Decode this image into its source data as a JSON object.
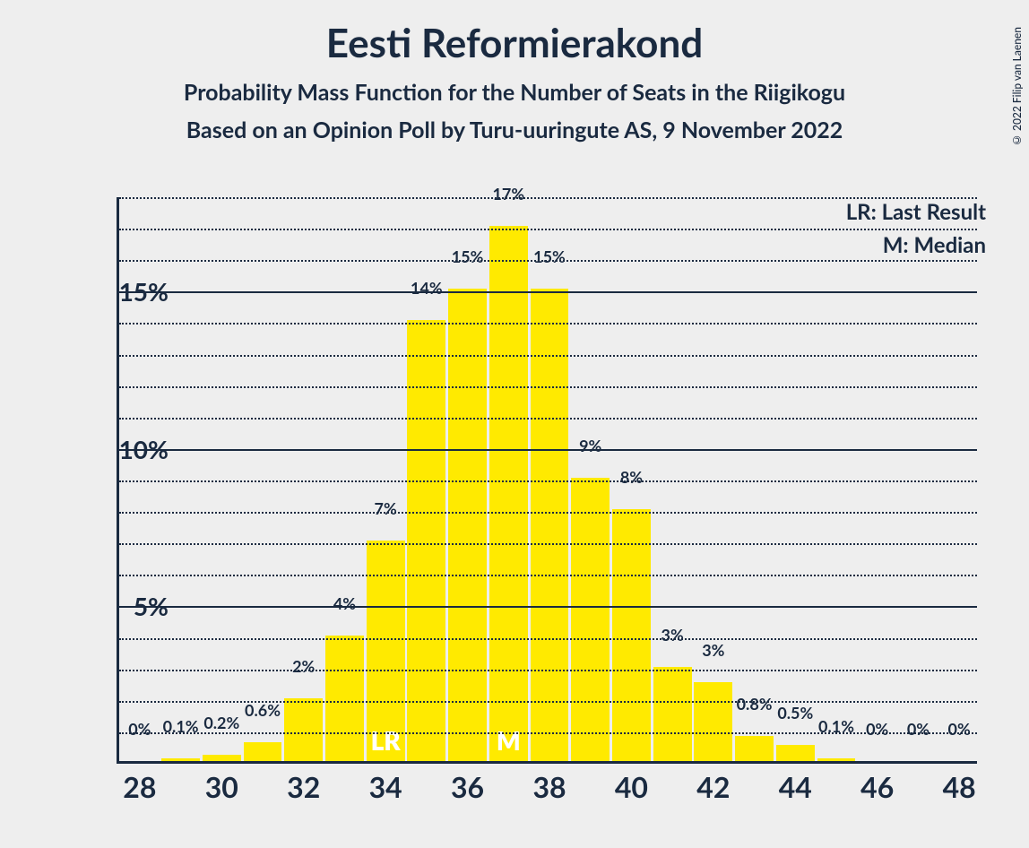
{
  "copyright": "© 2022 Filip van Laenen",
  "title": "Eesti Reformierakond",
  "subtitle1": "Probability Mass Function for the Number of Seats in the Riigikogu",
  "subtitle2": "Based on an Opinion Poll by Turu-uuringute AS, 9 November 2022",
  "legend": {
    "lr": "LR: Last Result",
    "m": "M: Median"
  },
  "chart": {
    "type": "bar",
    "background_color": "#eeeeee",
    "bar_color": "#ffea00",
    "axis_color": "#1a2a40",
    "grid_major_color": "#1a2a40",
    "grid_minor_color": "#1a2a40",
    "text_color": "#1a2a40",
    "title_fontsize": 44,
    "subtitle_fontsize": 25,
    "ytick_fontsize": 28,
    "xtick_fontsize": 32,
    "barlabel_fontsize": 18,
    "ylim": [
      0,
      18
    ],
    "y_major_ticks": [
      5,
      10,
      15
    ],
    "y_minor_step": 1,
    "x_min": 28,
    "x_max": 48,
    "x_ticks": [
      28,
      30,
      32,
      34,
      36,
      38,
      40,
      42,
      44,
      46,
      48
    ],
    "bar_width_ratio": 0.94,
    "bars": [
      {
        "x": 28,
        "value": 0,
        "label": "0%"
      },
      {
        "x": 29,
        "value": 0.1,
        "label": "0.1%"
      },
      {
        "x": 30,
        "value": 0.2,
        "label": "0.2%"
      },
      {
        "x": 31,
        "value": 0.6,
        "label": "0.6%"
      },
      {
        "x": 32,
        "value": 2,
        "label": "2%"
      },
      {
        "x": 33,
        "value": 4,
        "label": "4%"
      },
      {
        "x": 34,
        "value": 7,
        "label": "7%",
        "marker": "LR"
      },
      {
        "x": 35,
        "value": 14,
        "label": "14%"
      },
      {
        "x": 36,
        "value": 15,
        "label": "15%"
      },
      {
        "x": 37,
        "value": 17,
        "label": "17%",
        "marker": "M"
      },
      {
        "x": 38,
        "value": 15,
        "label": "15%"
      },
      {
        "x": 39,
        "value": 9,
        "label": "9%"
      },
      {
        "x": 40,
        "value": 8,
        "label": "8%"
      },
      {
        "x": 41,
        "value": 3,
        "label": "3%"
      },
      {
        "x": 42,
        "value": 2.5,
        "label": "3%"
      },
      {
        "x": 43,
        "value": 0.8,
        "label": "0.8%"
      },
      {
        "x": 44,
        "value": 0.5,
        "label": "0.5%"
      },
      {
        "x": 45,
        "value": 0.1,
        "label": "0.1%"
      },
      {
        "x": 46,
        "value": 0,
        "label": "0%"
      },
      {
        "x": 47,
        "value": 0,
        "label": "0%"
      },
      {
        "x": 48,
        "value": 0,
        "label": "0%"
      }
    ]
  }
}
